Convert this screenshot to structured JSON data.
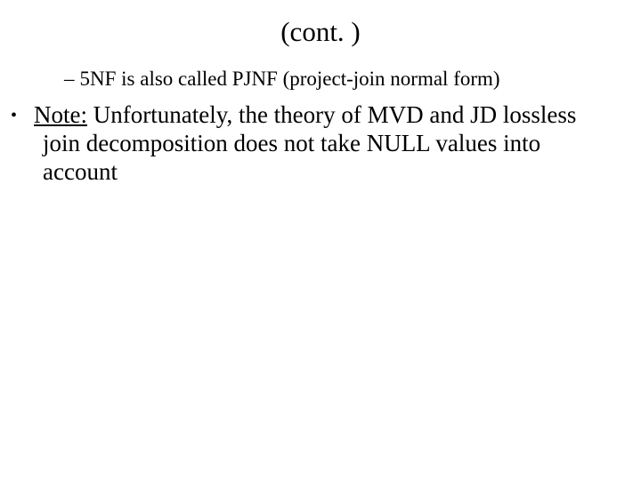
{
  "slide": {
    "title": "(cont. )",
    "sub_bullet": {
      "dash": "–",
      "text": "5NF is also called PJNF (project-join normal form)"
    },
    "main_bullet": {
      "dot": "•",
      "note_label": "Note:",
      "text": " Unfortunately, the theory of MVD and JD lossless join decomposition does not take NULL values into account"
    }
  },
  "colors": {
    "background": "#ffffff",
    "text": "#000000"
  },
  "typography": {
    "font_family": "Times New Roman",
    "title_fontsize": 31,
    "sub_fontsize": 23,
    "main_fontsize": 27
  }
}
